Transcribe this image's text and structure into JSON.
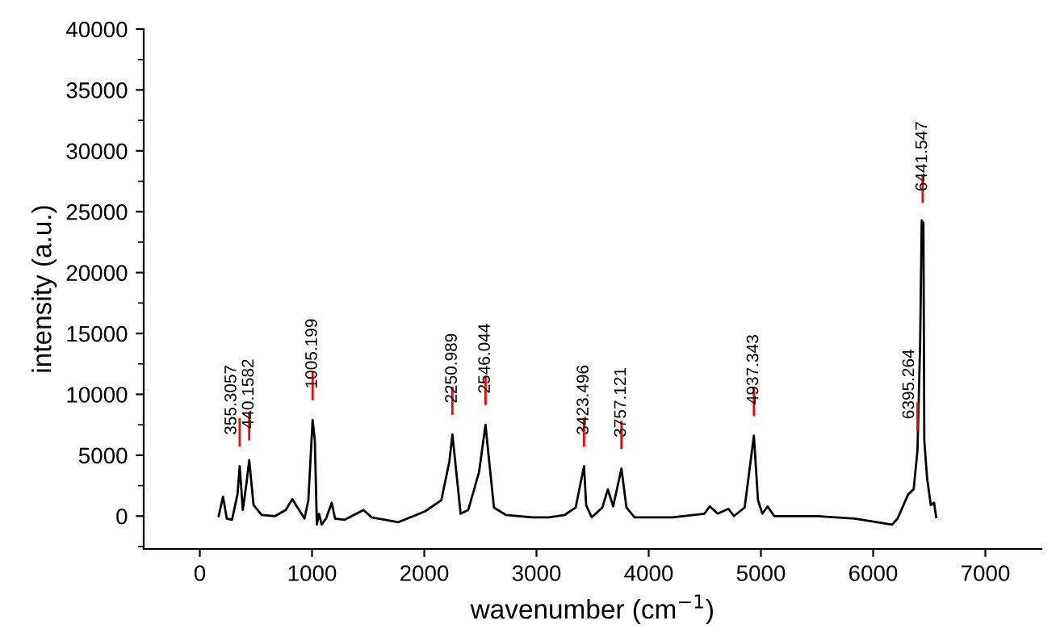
{
  "chart_data": {
    "type": "line",
    "xlabel": "wavenumber (cm$^{−1}$)",
    "ylabel": "intensity (a.u.)",
    "xlim": [
      -500,
      7500
    ],
    "xticks": [
      0,
      1000,
      2000,
      3000,
      4000,
      5000,
      6000,
      7000
    ],
    "ylim": [
      -2700,
      40000
    ],
    "yticks": [
      0,
      5000,
      10000,
      15000,
      20000,
      25000,
      30000,
      35000,
      40000
    ],
    "grid": false,
    "legend": false,
    "marker": "none",
    "line_style": "solid",
    "series": [
      {
        "color": "#000000",
        "x": [
          168,
          207,
          240,
          287,
          336,
          355.3057,
          383,
          416,
          440.1582,
          479,
          551,
          670,
          766,
          824,
          885,
          933,
          967,
          1005.199,
          1025,
          1043,
          1062,
          1086,
          1125,
          1176,
          1205,
          1291,
          1459,
          1531,
          1770,
          2009,
          2152,
          2224,
          2250.989,
          2287,
          2324,
          2392,
          2488,
          2546.044,
          2574,
          2621,
          2726,
          2966,
          3109,
          3253,
          3349,
          3423.496,
          3443,
          3492,
          3587,
          3636,
          3683,
          3757.121,
          3802,
          3874,
          4209,
          4496,
          4544,
          4615,
          4711,
          4759,
          4855,
          4937.343,
          4974,
          5013,
          5060,
          5118,
          5394,
          5500,
          5835,
          6170,
          6218,
          6313,
          6361,
          6395.264,
          6419,
          6433,
          6441.547,
          6448,
          6456,
          6481,
          6514,
          6543,
          6562
        ],
        "values": [
          0,
          1600,
          -200,
          -300,
          1800,
          4100,
          500,
          2700,
          4600,
          900,
          100,
          0,
          500,
          1400,
          500,
          -200,
          1300,
          7900,
          6200,
          -700,
          200,
          -700,
          -200,
          1100,
          -200,
          -300,
          500,
          -100,
          -500,
          400,
          1300,
          4500,
          6700,
          3500,
          200,
          500,
          3600,
          7500,
          4900,
          700,
          100,
          -100,
          -100,
          100,
          700,
          4100,
          900,
          -100,
          700,
          2200,
          800,
          3900,
          700,
          -100,
          -100,
          200,
          800,
          200,
          600,
          0,
          700,
          6600,
          1300,
          200,
          800,
          0,
          0,
          0,
          -200,
          -700,
          -200,
          1800,
          2200,
          5400,
          14300,
          24300,
          24100,
          24100,
          6200,
          3100,
          900,
          1100,
          -100
        ]
      }
    ],
    "annotations": [
      {
        "text": "355.3057",
        "x": 355.3057,
        "y": 4100
      },
      {
        "text": "440.1582",
        "x": 440.1582,
        "y": 4600
      },
      {
        "text": "1005.199",
        "x": 1005.199,
        "y": 7900
      },
      {
        "text": "2250.989",
        "x": 2250.989,
        "y": 6700
      },
      {
        "text": "2546.044",
        "x": 2546.044,
        "y": 7500
      },
      {
        "text": "3423.496",
        "x": 3423.496,
        "y": 4100
      },
      {
        "text": "3757.121",
        "x": 3757.121,
        "y": 3900
      },
      {
        "text": "4937.343",
        "x": 4937.343,
        "y": 6600
      },
      {
        "text": "6395.264",
        "x": 6395.264,
        "y": 5400
      },
      {
        "text": "6441.547",
        "x": 6441.547,
        "y": 24100
      }
    ]
  }
}
